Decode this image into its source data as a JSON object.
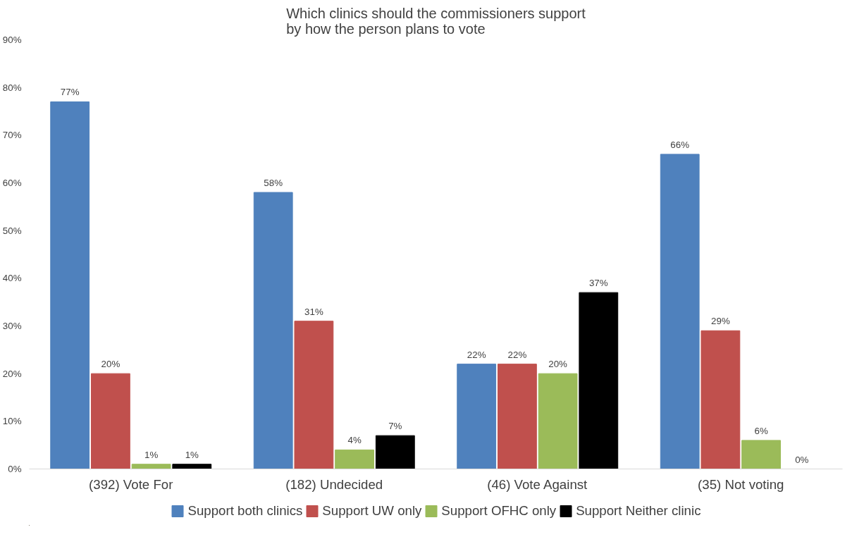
{
  "chart_data": {
    "type": "bar",
    "title": "Which clinics should the commissioners support\nby how the person plans to vote",
    "categories": [
      "(392) Vote For",
      "(182) Undecided",
      "(46) Vote Against",
      "(35) Not voting"
    ],
    "series": [
      {
        "name": "Support both clinics",
        "color": "#4f81bd",
        "values": [
          77,
          58,
          22,
          66
        ],
        "value_labels": [
          "77%",
          "58%",
          "22%",
          "66%"
        ]
      },
      {
        "name": "Support UW only",
        "color": "#c0504d",
        "values": [
          20,
          31,
          22,
          29
        ],
        "value_labels": [
          "20%",
          "31%",
          "22%",
          "29%"
        ]
      },
      {
        "name": "Support OFHC only",
        "color": "#9bbb59",
        "values": [
          1,
          4,
          20,
          6
        ],
        "value_labels": [
          "1%",
          "4%",
          "20%",
          "6%"
        ]
      },
      {
        "name": "Support Neither clinic",
        "color": "#000000",
        "values": [
          1,
          7,
          37,
          0
        ],
        "value_labels": [
          "1%",
          "7%",
          "37%",
          "0%"
        ]
      }
    ],
    "ylim": [
      0,
      90
    ],
    "yticks": [
      {
        "value": 0,
        "label": "0%"
      },
      {
        "value": 10,
        "label": "10%"
      },
      {
        "value": 20,
        "label": "20%"
      },
      {
        "value": 30,
        "label": "30%"
      },
      {
        "value": 40,
        "label": "40%"
      },
      {
        "value": 50,
        "label": "50%"
      },
      {
        "value": 60,
        "label": "60%"
      },
      {
        "value": 70,
        "label": "70%"
      },
      {
        "value": 80,
        "label": "80%"
      },
      {
        "value": 90,
        "label": "90%"
      }
    ],
    "data_labels": true,
    "legend": "bottom",
    "grid": false
  }
}
